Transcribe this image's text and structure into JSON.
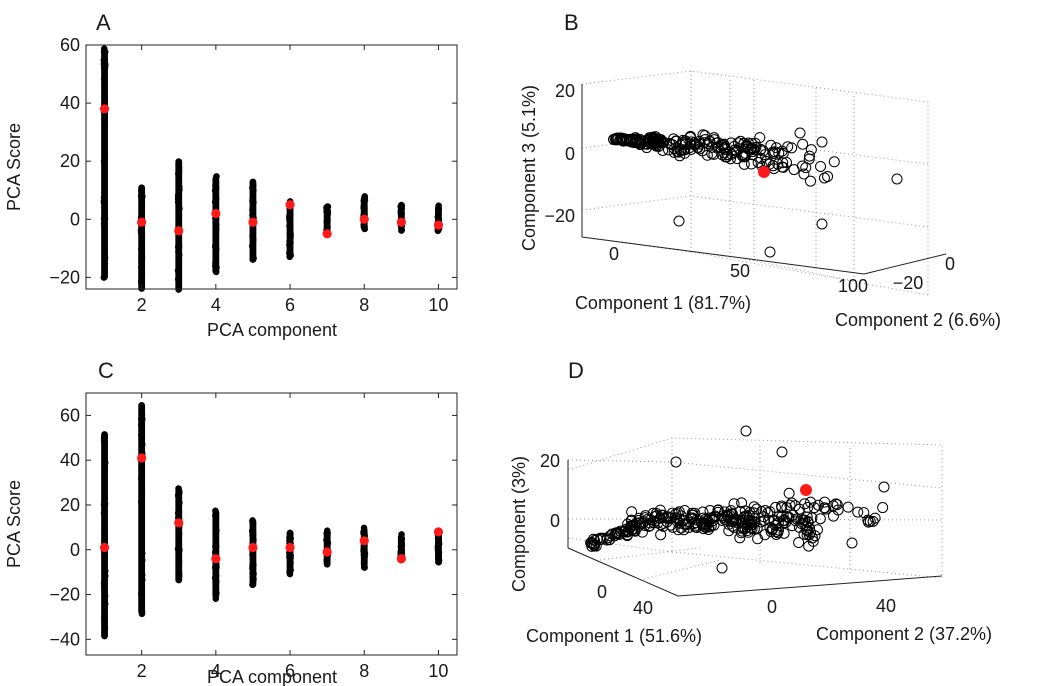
{
  "colors": {
    "axis": "#222222",
    "point": "#000000",
    "highlight": "#ff1a1a",
    "grid": "#9a9a9a"
  },
  "chart_data": [
    {
      "panel": "A",
      "type": "scatter",
      "xlabel": "PCA component",
      "ylabel": "PCA Score",
      "xlim": [
        0.5,
        10.5
      ],
      "ylim": [
        -24,
        60
      ],
      "xticks": [
        2,
        4,
        6,
        8,
        10
      ],
      "yticks": [
        -20,
        0,
        20,
        40,
        60
      ],
      "distribution": [
        {
          "x": 1,
          "min": -21,
          "max": 59
        },
        {
          "x": 2,
          "min": -25,
          "max": 12
        },
        {
          "x": 3,
          "min": -25,
          "max": 21
        },
        {
          "x": 4,
          "min": -19,
          "max": 15
        },
        {
          "x": 5,
          "min": -15,
          "max": 14
        },
        {
          "x": 6,
          "min": -13,
          "max": 7
        },
        {
          "x": 7,
          "min": -5,
          "max": 5
        },
        {
          "x": 8,
          "min": -4,
          "max": 8
        },
        {
          "x": 9,
          "min": -4,
          "max": 5
        },
        {
          "x": 10,
          "min": -4,
          "max": 5
        }
      ],
      "highlight": [
        {
          "x": 1,
          "y": 38
        },
        {
          "x": 2,
          "y": -1
        },
        {
          "x": 3,
          "y": -4
        },
        {
          "x": 4,
          "y": 2
        },
        {
          "x": 5,
          "y": -1
        },
        {
          "x": 6,
          "y": 5
        },
        {
          "x": 7,
          "y": -5
        },
        {
          "x": 8,
          "y": 0
        },
        {
          "x": 9,
          "y": -1
        },
        {
          "x": 10,
          "y": -2
        }
      ]
    },
    {
      "panel": "B",
      "type": "scatter3d",
      "xlabel": "Component 1 (81.7%)",
      "ylabel": "Component 2 (6.6%)",
      "zlabel": "Component 3 (5.1%)",
      "x_ticks": [
        "0",
        "50",
        "100"
      ],
      "y_ticks": [
        "0",
        "−20"
      ],
      "z_ticks": [
        "20",
        "0",
        "−20"
      ],
      "highlight": {
        "x": 62,
        "y": -6,
        "z": -7
      }
    },
    {
      "panel": "C",
      "type": "scatter",
      "xlabel": "PCA component",
      "ylabel": "PCA Score",
      "xlim": [
        0.5,
        10.5
      ],
      "ylim": [
        -47,
        70
      ],
      "xticks": [
        2,
        4,
        6,
        8,
        10
      ],
      "yticks": [
        -40,
        -20,
        0,
        20,
        40,
        60
      ],
      "distribution": [
        {
          "x": 1,
          "min": -40,
          "max": 53
        },
        {
          "x": 2,
          "min": -29,
          "max": 66
        },
        {
          "x": 3,
          "min": -15,
          "max": 28
        },
        {
          "x": 4,
          "min": -22,
          "max": 18
        },
        {
          "x": 5,
          "min": -17,
          "max": 14
        },
        {
          "x": 6,
          "min": -11,
          "max": 9
        },
        {
          "x": 7,
          "min": -8,
          "max": 9
        },
        {
          "x": 8,
          "min": -8,
          "max": 10
        },
        {
          "x": 9,
          "min": -6,
          "max": 7
        },
        {
          "x": 10,
          "min": -6,
          "max": 8
        }
      ],
      "highlight": [
        {
          "x": 1,
          "y": 1
        },
        {
          "x": 2,
          "y": 41
        },
        {
          "x": 3,
          "y": 12
        },
        {
          "x": 4,
          "y": -4
        },
        {
          "x": 5,
          "y": 1
        },
        {
          "x": 6,
          "y": 1
        },
        {
          "x": 7,
          "y": -1
        },
        {
          "x": 8,
          "y": 4
        },
        {
          "x": 9,
          "y": -4
        },
        {
          "x": 10,
          "y": 8
        }
      ]
    },
    {
      "panel": "D",
      "type": "scatter3d",
      "xlabel": "Component 1 (51.6%)",
      "ylabel": "Component 2 (37.2%)",
      "zlabel": "Component (3%)",
      "x_ticks": [
        "0",
        "40"
      ],
      "y_ticks": [
        "0",
        "40"
      ],
      "z_ticks": [
        "20",
        "0"
      ],
      "highlight": {
        "x": 10,
        "y": 30,
        "z": 10
      }
    }
  ]
}
